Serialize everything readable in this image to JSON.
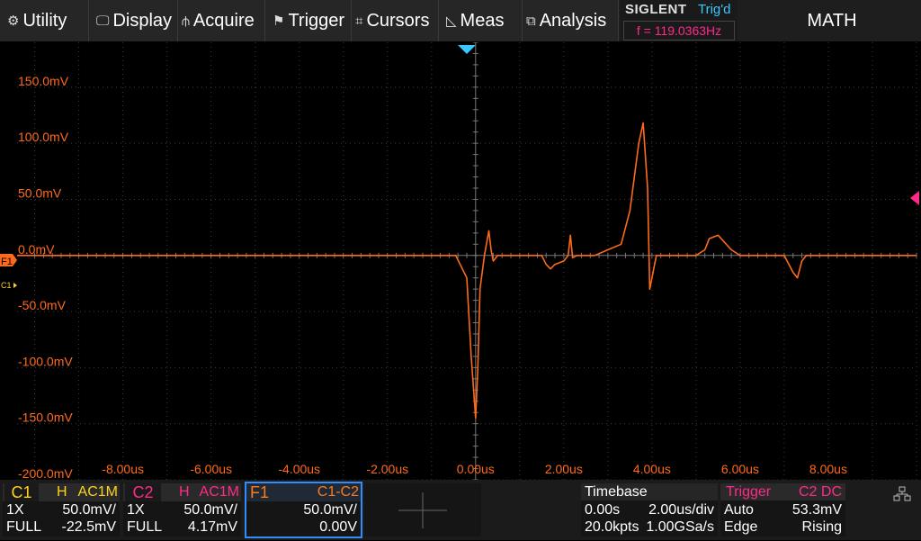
{
  "menu": {
    "utility": "Utility",
    "display": "Display",
    "acquire": "Acquire",
    "trigger": "Trigger",
    "cursors": "Cursors",
    "meas": "Meas",
    "analysis": "Analysis"
  },
  "status": {
    "brand": "SIGLENT",
    "trig_state": "Trig'd",
    "frequency": "f = 119.0363Hz",
    "mode_label": "MATH"
  },
  "markers": {
    "f1": "F1",
    "c1": "C1"
  },
  "colors": {
    "trace": "#ff6a1a",
    "c1": "#ffd21a",
    "c2": "#ff2a8a",
    "f1": "#ff7a1a",
    "trig_blue": "#36c8ff",
    "grid": "#3c3c3c"
  },
  "chart_data": {
    "type": "line",
    "xlabel": "",
    "ylabel": "",
    "x_ticks": [
      "-8.00us",
      "-6.00us",
      "-4.00us",
      "-2.00us",
      "0.00us",
      "2.00us",
      "4.00us",
      "6.00us",
      "8.00us"
    ],
    "y_ticks": [
      "150.0mV",
      "100.0mV",
      "50.0mV",
      "0.0mV",
      "-50.0mV",
      "-100.0mV",
      "-150.0mV",
      "-200.0mV"
    ],
    "xlim": [
      -10.4,
      10.0
    ],
    "ylim": [
      -200,
      190
    ],
    "x_unit": "us",
    "y_unit": "mV",
    "series": [
      {
        "x": [
          -10.4,
          -0.45,
          -0.35,
          -0.2,
          -0.1,
          0.0,
          0.05,
          0.1,
          0.2,
          0.3,
          0.35,
          0.4,
          0.5,
          0.8,
          1.2,
          1.5,
          1.6,
          1.7,
          1.8,
          2.0,
          2.1,
          2.15,
          2.2,
          2.3,
          2.5,
          2.7,
          3.0,
          3.3,
          3.5,
          3.7,
          3.8,
          3.9,
          3.95,
          4.0,
          4.05,
          4.1,
          4.15,
          4.3,
          4.5,
          5.0,
          5.2,
          5.3,
          5.5,
          5.8,
          6.0,
          6.5,
          7.0,
          7.2,
          7.3,
          7.4,
          7.5,
          10.0
        ],
        "y": [
          0,
          0,
          -8,
          -20,
          -90,
          -145,
          -100,
          -30,
          0,
          22,
          5,
          -5,
          0,
          0,
          0,
          0,
          -8,
          -12,
          -8,
          -5,
          0,
          18,
          -2,
          0,
          0,
          0,
          5,
          10,
          40,
          100,
          118,
          60,
          -30,
          -20,
          -10,
          0,
          0,
          0,
          0,
          0,
          5,
          15,
          18,
          5,
          0,
          0,
          0,
          -15,
          -20,
          -5,
          0,
          0
        ]
      }
    ]
  },
  "ch1": {
    "name": "C1",
    "flag_h": "H",
    "coupling": "AC1M",
    "probe": "1X",
    "scale": "50.0mV/",
    "bw": "FULL",
    "offset": "-22.5mV"
  },
  "ch2": {
    "name": "C2",
    "flag_h": "H",
    "coupling": "AC1M",
    "probe": "1X",
    "scale": "50.0mV/",
    "bw": "FULL",
    "offset": "4.17mV"
  },
  "f1": {
    "name": "F1",
    "expr": "C1-C2",
    "scale": "50.0mV/",
    "offset": "0.00V"
  },
  "timebase": {
    "title": "Timebase",
    "delay": "0.00s",
    "scale": "2.00us/div",
    "points": "20.0kpts",
    "rate": "1.00GSa/s"
  },
  "trigger": {
    "title": "Trigger",
    "source": "C2 DC",
    "mode": "Auto",
    "level": "53.3mV",
    "type": "Edge",
    "slope": "Rising"
  }
}
